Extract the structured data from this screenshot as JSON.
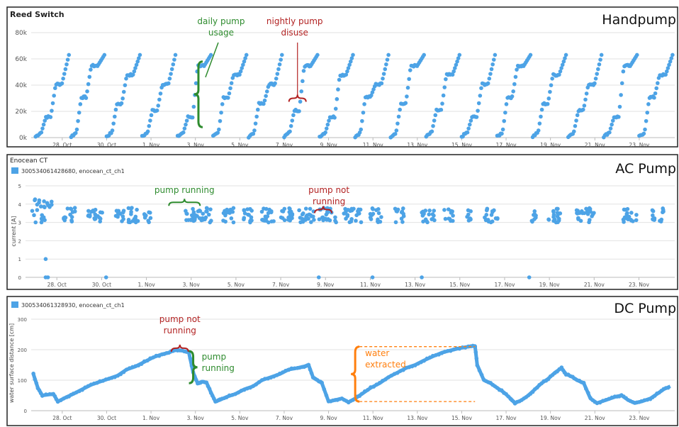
{
  "chart_data": [
    {
      "type": "scatter",
      "panel_title": "Reed Switch",
      "corner_label": "Handpump",
      "ylim": [
        0,
        80000
      ],
      "yticks": [
        {
          "v": 0,
          "t": "0k"
        },
        {
          "v": 20000,
          "t": "20k"
        },
        {
          "v": 40000,
          "t": "40k"
        },
        {
          "v": 60000,
          "t": "60k"
        },
        {
          "v": 80000,
          "t": "80k"
        }
      ],
      "xticks": [
        {
          "day": 28,
          "t": "28. Oct"
        },
        {
          "day": 30,
          "t": "30. Oct"
        },
        {
          "day": 32,
          "t": "1. Nov"
        },
        {
          "day": 34,
          "t": "3. Nov"
        },
        {
          "day": 36,
          "t": "5. Nov"
        },
        {
          "day": 38,
          "t": "7. Nov"
        },
        {
          "day": 40,
          "t": "9. Nov"
        },
        {
          "day": 42,
          "t": "11. Nov"
        },
        {
          "day": 44,
          "t": "13. Nov"
        },
        {
          "day": 46,
          "t": "15. Nov"
        },
        {
          "day": 48,
          "t": "17. Nov"
        },
        {
          "day": 50,
          "t": "19. Nov"
        },
        {
          "day": 52,
          "t": "21. Nov"
        },
        {
          "day": 54,
          "t": "23. Nov"
        }
      ],
      "cycle_starts_day": [
        26.8,
        28.4,
        30.0,
        31.6,
        33.2,
        34.8,
        36.4,
        38.0,
        39.6,
        41.2,
        42.8,
        44.4,
        46.0,
        47.6,
        49.2,
        50.8,
        52.4,
        54.0
      ],
      "series_color": "#4da3e6",
      "annotations": [
        {
          "text": [
            "daily pump",
            "usage"
          ],
          "color": "#2e8b2e",
          "day": 34.2,
          "v_from": 8000,
          "v_to": 58000
        },
        {
          "text": [
            "nightly pump",
            "disuse"
          ],
          "color": "#b22222",
          "day": 38.6,
          "v_at": 30000
        }
      ]
    },
    {
      "type": "scatter",
      "panel_title": "Enocean CT",
      "corner_label": "AC Pump",
      "series": [
        {
          "name": "300534061428680, enocean_ct_ch1",
          "color": "#4da3e6"
        }
      ],
      "ylabel": "current [A]",
      "ylim": [
        0,
        5
      ],
      "yticks": [
        {
          "v": 0,
          "t": "0"
        },
        {
          "v": 1,
          "t": "1"
        },
        {
          "v": 2,
          "t": "2"
        },
        {
          "v": 3,
          "t": "3"
        },
        {
          "v": 4,
          "t": "4"
        },
        {
          "v": 5,
          "t": "5"
        }
      ],
      "xticks": [
        {
          "day": 28,
          "t": "28. Oct"
        },
        {
          "day": 30,
          "t": "30. Oct"
        },
        {
          "day": 32,
          "t": "1. Nov"
        },
        {
          "day": 34,
          "t": "3. Nov"
        },
        {
          "day": 36,
          "t": "5. Nov"
        },
        {
          "day": 38,
          "t": "7. Nov"
        },
        {
          "day": 40,
          "t": "9. Nov"
        },
        {
          "day": 42,
          "t": "11. Nov"
        },
        {
          "day": 44,
          "t": "13. Nov"
        },
        {
          "day": 46,
          "t": "15. Nov"
        },
        {
          "day": 48,
          "t": "17. Nov"
        },
        {
          "day": 50,
          "t": "19. Nov"
        },
        {
          "day": 52,
          "t": "21. Nov"
        },
        {
          "day": 54,
          "t": "23. Nov"
        }
      ],
      "running_clusters": [
        {
          "day": 26.9,
          "span": 0.9,
          "hi": true
        },
        {
          "day": 28.3,
          "span": 0.6
        },
        {
          "day": 29.4,
          "span": 0.7
        },
        {
          "day": 30.6,
          "span": 0.4
        },
        {
          "day": 31.2,
          "span": 0.5
        },
        {
          "day": 31.9,
          "span": 0.3
        },
        {
          "day": 33.7,
          "span": 1.2
        },
        {
          "day": 35.4,
          "span": 0.5
        },
        {
          "day": 36.3,
          "span": 0.5
        },
        {
          "day": 37.1,
          "span": 0.6
        },
        {
          "day": 38.0,
          "span": 0.6
        },
        {
          "day": 38.8,
          "span": 0.7
        },
        {
          "day": 39.7,
          "span": 0.8
        },
        {
          "day": 40.8,
          "span": 0.8
        },
        {
          "day": 42.0,
          "span": 0.5
        },
        {
          "day": 43.1,
          "span": 0.4
        },
        {
          "day": 44.3,
          "span": 0.6
        },
        {
          "day": 45.3,
          "span": 0.4
        },
        {
          "day": 46.3,
          "span": 0.2
        },
        {
          "day": 47.1,
          "span": 0.6
        },
        {
          "day": 49.2,
          "span": 0.2
        },
        {
          "day": 49.9,
          "span": 0.6
        },
        {
          "day": 51.2,
          "span": 0.8
        },
        {
          "day": 53.3,
          "span": 0.6
        },
        {
          "day": 54.6,
          "span": 0.5
        }
      ],
      "zero_points_day": [
        27.5,
        27.6,
        30.2,
        39.7,
        42.1,
        44.3,
        49.1
      ],
      "extra_points": [
        {
          "day": 27.5,
          "v": 1.0
        }
      ],
      "annotations": [
        {
          "text": [
            "pump running"
          ],
          "color": "#2e8b2e",
          "day": 33.7,
          "v_at": 4.1
        },
        {
          "text": [
            "pump not",
            "running"
          ],
          "color": "#b22222",
          "day": 39.9,
          "v_at": 3.7
        }
      ]
    },
    {
      "type": "line",
      "corner_label": "DC Pump",
      "series": [
        {
          "name": "300534061328930, enocean_ct_ch1",
          "color": "#4da3e6"
        }
      ],
      "ylabel": "water surface distance [cm]",
      "ylim": [
        0,
        300
      ],
      "yticks": [
        {
          "v": 0,
          "t": "0"
        },
        {
          "v": 100,
          "t": "100"
        },
        {
          "v": 200,
          "t": "200"
        },
        {
          "v": 300,
          "t": "300"
        }
      ],
      "xticks": [
        {
          "day": 28,
          "t": "28. Oct"
        },
        {
          "day": 30,
          "t": "30. Oct"
        },
        {
          "day": 32,
          "t": "1. Nov"
        },
        {
          "day": 34,
          "t": "3. Nov"
        },
        {
          "day": 36,
          "t": "5. Nov"
        },
        {
          "day": 38,
          "t": "7. Nov"
        },
        {
          "day": 40,
          "t": "9. Nov"
        },
        {
          "day": 42,
          "t": "11. Nov"
        },
        {
          "day": 44,
          "t": "13. Nov"
        },
        {
          "day": 46,
          "t": "15. Nov"
        },
        {
          "day": 48,
          "t": "17. Nov"
        },
        {
          "day": 50,
          "t": "19. Nov"
        },
        {
          "day": 52,
          "t": "21. Nov"
        },
        {
          "day": 54,
          "t": "23. Nov"
        }
      ],
      "points": [
        [
          26.7,
          120
        ],
        [
          26.9,
          75
        ],
        [
          27.1,
          50
        ],
        [
          27.6,
          55
        ],
        [
          27.8,
          30
        ],
        [
          28.2,
          45
        ],
        [
          28.5,
          55
        ],
        [
          28.9,
          70
        ],
        [
          29.3,
          85
        ],
        [
          29.7,
          95
        ],
        [
          30.1,
          105
        ],
        [
          30.5,
          115
        ],
        [
          30.9,
          135
        ],
        [
          31.3,
          145
        ],
        [
          31.7,
          160
        ],
        [
          32.1,
          175
        ],
        [
          32.5,
          185
        ],
        [
          32.8,
          190
        ],
        [
          33.1,
          200
        ],
        [
          33.4,
          197
        ],
        [
          33.7,
          192
        ],
        [
          33.9,
          125
        ],
        [
          34.1,
          90
        ],
        [
          34.3,
          95
        ],
        [
          34.5,
          92
        ],
        [
          34.7,
          60
        ],
        [
          34.9,
          30
        ],
        [
          35.1,
          35
        ],
        [
          35.4,
          45
        ],
        [
          35.8,
          55
        ],
        [
          36.2,
          70
        ],
        [
          36.6,
          80
        ],
        [
          37.0,
          100
        ],
        [
          37.4,
          110
        ],
        [
          37.8,
          120
        ],
        [
          38.2,
          135
        ],
        [
          38.6,
          140
        ],
        [
          38.9,
          145
        ],
        [
          39.1,
          150
        ],
        [
          39.3,
          110
        ],
        [
          39.5,
          100
        ],
        [
          39.7,
          90
        ],
        [
          40.0,
          30
        ],
        [
          40.3,
          35
        ],
        [
          40.6,
          40
        ],
        [
          40.9,
          28
        ],
        [
          41.2,
          40
        ],
        [
          41.5,
          55
        ],
        [
          41.9,
          75
        ],
        [
          42.3,
          90
        ],
        [
          42.7,
          110
        ],
        [
          43.1,
          125
        ],
        [
          43.5,
          140
        ],
        [
          43.9,
          150
        ],
        [
          44.3,
          165
        ],
        [
          44.7,
          178
        ],
        [
          45.1,
          190
        ],
        [
          45.5,
          198
        ],
        [
          45.9,
          205
        ],
        [
          46.3,
          210
        ],
        [
          46.6,
          212
        ],
        [
          46.7,
          150
        ],
        [
          47.0,
          100
        ],
        [
          47.3,
          90
        ],
        [
          47.6,
          75
        ],
        [
          47.9,
          60
        ],
        [
          48.2,
          40
        ],
        [
          48.4,
          25
        ],
        [
          48.7,
          35
        ],
        [
          49.0,
          50
        ],
        [
          49.3,
          70
        ],
        [
          49.6,
          90
        ],
        [
          49.9,
          105
        ],
        [
          50.2,
          125
        ],
        [
          50.5,
          140
        ],
        [
          50.7,
          120
        ],
        [
          51.0,
          110
        ],
        [
          51.2,
          100
        ],
        [
          51.5,
          90
        ],
        [
          51.8,
          40
        ],
        [
          52.1,
          25
        ],
        [
          52.5,
          35
        ],
        [
          52.9,
          45
        ],
        [
          53.2,
          50
        ],
        [
          53.5,
          35
        ],
        [
          53.8,
          25
        ],
        [
          54.1,
          30
        ],
        [
          54.5,
          40
        ],
        [
          54.8,
          55
        ],
        [
          55.1,
          70
        ],
        [
          55.4,
          80
        ]
      ],
      "annotations": [
        {
          "text": [
            "pump not",
            "running"
          ],
          "color": "#b22222",
          "day": 33.3,
          "v_at": 205
        },
        {
          "text": [
            "pump",
            "running"
          ],
          "color": "#2e8b2e",
          "day": 33.9,
          "v_from": 90,
          "v_to": 195
        },
        {
          "text": [
            "water",
            "extracted"
          ],
          "color": "#ff7f0e",
          "day": 41.2,
          "v_from": 30,
          "v_to": 210
        }
      ]
    }
  ]
}
